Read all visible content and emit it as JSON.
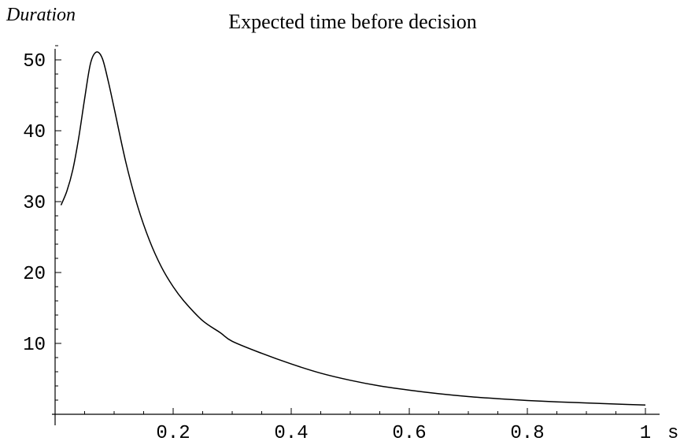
{
  "chart_data": {
    "type": "line",
    "title": "Expected time before decision",
    "ylabel": "Duration",
    "xlabel": "s",
    "xlim": [
      0,
      1.0
    ],
    "ylim": [
      0,
      52
    ],
    "x_ticks": [
      {
        "value": 0.2,
        "label": "0.2"
      },
      {
        "value": 0.4,
        "label": "0.4"
      },
      {
        "value": 0.6,
        "label": "0.6"
      },
      {
        "value": 0.8,
        "label": "0.8"
      },
      {
        "value": 1.0,
        "label": "1"
      }
    ],
    "y_ticks": [
      {
        "value": 10,
        "label": "10"
      },
      {
        "value": 20,
        "label": "20"
      },
      {
        "value": 30,
        "label": "30"
      },
      {
        "value": 40,
        "label": "40"
      },
      {
        "value": 50,
        "label": "50"
      }
    ],
    "x_minor_step": 0.05,
    "y_minor_step": 2,
    "grid": false,
    "legend": "none",
    "series": [
      {
        "color": "#000000",
        "x": [
          0.01,
          0.02,
          0.03,
          0.04,
          0.05,
          0.06,
          0.07,
          0.08,
          0.09,
          0.1,
          0.12,
          0.14,
          0.16,
          0.18,
          0.2,
          0.22,
          0.25,
          0.28,
          0.3,
          0.35,
          0.4,
          0.45,
          0.5,
          0.55,
          0.6,
          0.65,
          0.7,
          0.75,
          0.8,
          0.85,
          0.9,
          0.95,
          1.0
        ],
        "y": [
          29.5,
          31.5,
          34.5,
          39.0,
          44.5,
          49.5,
          51.1,
          50.2,
          47.0,
          43.2,
          35.5,
          29.3,
          24.5,
          20.8,
          18.0,
          15.8,
          13.2,
          11.5,
          10.3,
          8.6,
          7.1,
          5.8,
          4.8,
          4.0,
          3.4,
          2.9,
          2.5,
          2.2,
          1.95,
          1.75,
          1.6,
          1.45,
          1.3
        ]
      }
    ]
  }
}
